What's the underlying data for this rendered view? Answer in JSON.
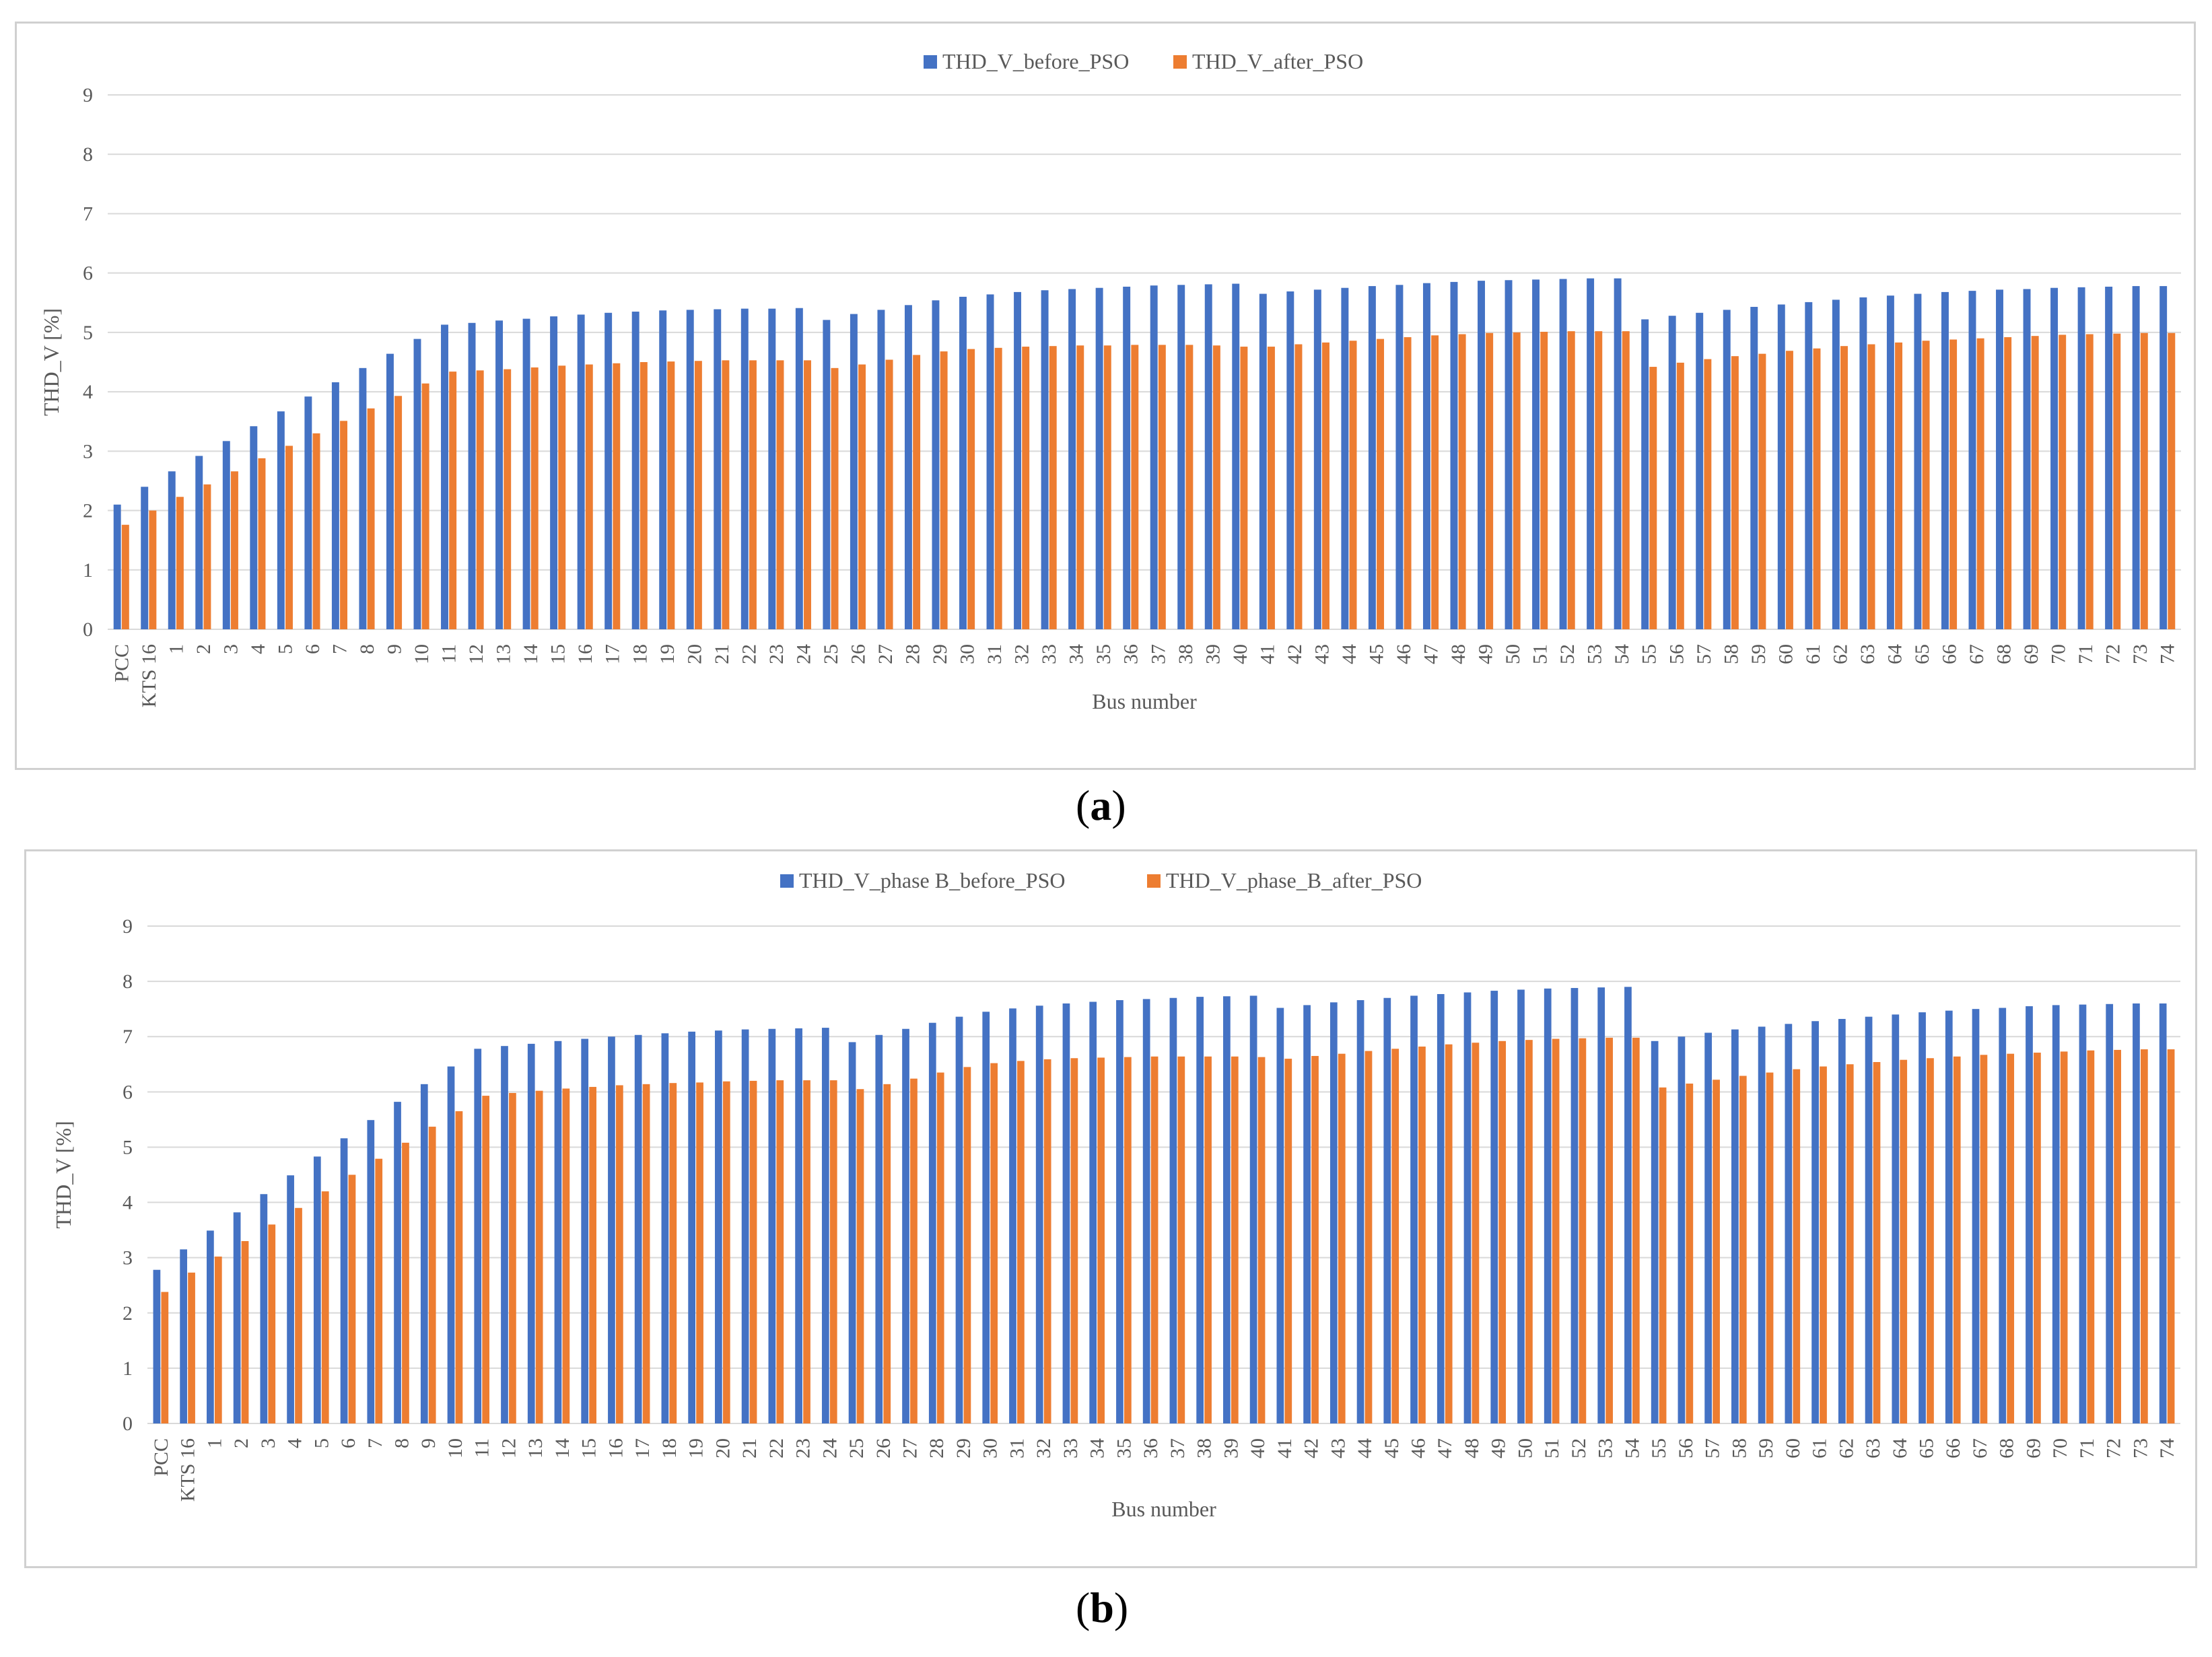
{
  "chart_data": [
    {
      "type": "bar",
      "panel": "a",
      "caption_open": "(",
      "caption_letter": "a",
      "caption_close": ")",
      "xlabel": "Bus number",
      "ylabel": "THD_V [%]",
      "ylim": [
        0,
        9
      ],
      "yticks": [
        "0",
        "1",
        "2",
        "3",
        "4",
        "5",
        "6",
        "7",
        "8",
        "9"
      ],
      "grid": true,
      "legend_position": "top-center",
      "categories": [
        "PCC",
        "KTS 16",
        "1",
        "2",
        "3",
        "4",
        "5",
        "6",
        "7",
        "8",
        "9",
        "10",
        "11",
        "12",
        "13",
        "14",
        "15",
        "16",
        "17",
        "18",
        "19",
        "20",
        "21",
        "22",
        "23",
        "24",
        "25",
        "26",
        "27",
        "28",
        "29",
        "30",
        "31",
        "32",
        "33",
        "34",
        "35",
        "36",
        "37",
        "38",
        "39",
        "40",
        "41",
        "42",
        "43",
        "44",
        "45",
        "46",
        "47",
        "48",
        "49",
        "50",
        "51",
        "52",
        "53",
        "54",
        "55",
        "56",
        "57",
        "58",
        "59",
        "60",
        "61",
        "62",
        "63",
        "64",
        "65",
        "66",
        "67",
        "68",
        "69",
        "70",
        "71",
        "72",
        "73",
        "74"
      ],
      "series": [
        {
          "name": "THD_V_before_PSO",
          "color": "#4472C4",
          "values": [
            2.1,
            2.4,
            2.66,
            2.92,
            3.17,
            3.42,
            3.67,
            3.92,
            4.16,
            4.4,
            4.64,
            4.89,
            5.13,
            5.16,
            5.2,
            5.23,
            5.27,
            5.3,
            5.33,
            5.35,
            5.37,
            5.38,
            5.39,
            5.4,
            5.4,
            5.41,
            5.21,
            5.31,
            5.38,
            5.46,
            5.54,
            5.6,
            5.64,
            5.68,
            5.71,
            5.73,
            5.75,
            5.77,
            5.79,
            5.8,
            5.81,
            5.82,
            5.65,
            5.69,
            5.72,
            5.75,
            5.78,
            5.8,
            5.83,
            5.85,
            5.87,
            5.88,
            5.89,
            5.9,
            5.91,
            5.91,
            5.22,
            5.28,
            5.33,
            5.38,
            5.43,
            5.47,
            5.51,
            5.55,
            5.59,
            5.62,
            5.65,
            5.68,
            5.7,
            5.72,
            5.73,
            5.75,
            5.76,
            5.77,
            5.78,
            5.78
          ]
        },
        {
          "name": "THD_V_after_PSO",
          "color": "#ED7D31",
          "values": [
            1.76,
            2.0,
            2.23,
            2.44,
            2.66,
            2.88,
            3.09,
            3.3,
            3.51,
            3.72,
            3.93,
            4.14,
            4.34,
            4.36,
            4.38,
            4.41,
            4.44,
            4.46,
            4.48,
            4.5,
            4.51,
            4.52,
            4.53,
            4.53,
            4.53,
            4.53,
            4.4,
            4.46,
            4.54,
            4.62,
            4.68,
            4.72,
            4.74,
            4.76,
            4.77,
            4.78,
            4.78,
            4.79,
            4.79,
            4.79,
            4.78,
            4.76,
            4.76,
            4.8,
            4.83,
            4.86,
            4.89,
            4.92,
            4.95,
            4.97,
            4.99,
            5.0,
            5.01,
            5.02,
            5.02,
            5.02,
            4.42,
            4.49,
            4.55,
            4.6,
            4.64,
            4.69,
            4.73,
            4.77,
            4.8,
            4.83,
            4.86,
            4.88,
            4.9,
            4.92,
            4.94,
            4.96,
            4.97,
            4.98,
            4.99,
            4.99
          ]
        }
      ]
    },
    {
      "type": "bar",
      "panel": "b",
      "caption_open": "(",
      "caption_letter": "b",
      "caption_close": ")",
      "xlabel": "Bus number",
      "ylabel": "THD_V [%]",
      "ylim": [
        0,
        9
      ],
      "yticks": [
        "0",
        "1",
        "2",
        "3",
        "4",
        "5",
        "6",
        "7",
        "8",
        "9"
      ],
      "grid": true,
      "legend_position": "top-center",
      "categories": [
        "PCC",
        "KTS 16",
        "1",
        "2",
        "3",
        "4",
        "5",
        "6",
        "7",
        "8",
        "9",
        "10",
        "11",
        "12",
        "13",
        "14",
        "15",
        "16",
        "17",
        "18",
        "19",
        "20",
        "21",
        "22",
        "23",
        "24",
        "25",
        "26",
        "27",
        "28",
        "29",
        "30",
        "31",
        "32",
        "33",
        "34",
        "35",
        "36",
        "37",
        "38",
        "39",
        "40",
        "41",
        "42",
        "43",
        "44",
        "45",
        "46",
        "47",
        "48",
        "49",
        "50",
        "51",
        "52",
        "53",
        "54",
        "55",
        "56",
        "57",
        "58",
        "59",
        "60",
        "61",
        "62",
        "63",
        "64",
        "65",
        "66",
        "67",
        "68",
        "69",
        "70",
        "71",
        "72",
        "73",
        "74"
      ],
      "series": [
        {
          "name": "THD_V_phase B_before_PSO",
          "color": "#4472C4",
          "values": [
            2.78,
            3.15,
            3.49,
            3.82,
            4.15,
            4.49,
            4.83,
            5.16,
            5.49,
            5.82,
            6.14,
            6.46,
            6.78,
            6.83,
            6.87,
            6.92,
            6.96,
            7.0,
            7.03,
            7.06,
            7.09,
            7.11,
            7.13,
            7.14,
            7.15,
            7.16,
            6.9,
            7.03,
            7.14,
            7.25,
            7.36,
            7.45,
            7.51,
            7.56,
            7.6,
            7.63,
            7.66,
            7.68,
            7.7,
            7.72,
            7.73,
            7.74,
            7.52,
            7.57,
            7.62,
            7.66,
            7.7,
            7.74,
            7.77,
            7.8,
            7.83,
            7.85,
            7.87,
            7.88,
            7.89,
            7.9,
            6.92,
            7.0,
            7.07,
            7.13,
            7.18,
            7.23,
            7.28,
            7.32,
            7.36,
            7.4,
            7.44,
            7.47,
            7.5,
            7.52,
            7.55,
            7.57,
            7.58,
            7.59,
            7.6,
            7.6
          ]
        },
        {
          "name": "THD_V_phase_B_after_PSO",
          "color": "#ED7D31",
          "values": [
            2.38,
            2.73,
            3.02,
            3.3,
            3.6,
            3.9,
            4.2,
            4.5,
            4.79,
            5.08,
            5.37,
            5.65,
            5.93,
            5.98,
            6.02,
            6.06,
            6.09,
            6.12,
            6.14,
            6.16,
            6.17,
            6.19,
            6.2,
            6.21,
            6.21,
            6.21,
            6.05,
            6.14,
            6.24,
            6.35,
            6.45,
            6.52,
            6.56,
            6.59,
            6.61,
            6.62,
            6.63,
            6.64,
            6.64,
            6.64,
            6.64,
            6.63,
            6.6,
            6.65,
            6.69,
            6.74,
            6.78,
            6.82,
            6.86,
            6.89,
            6.92,
            6.94,
            6.96,
            6.97,
            6.98,
            6.98,
            6.08,
            6.15,
            6.22,
            6.29,
            6.35,
            6.41,
            6.46,
            6.5,
            6.54,
            6.58,
            6.61,
            6.64,
            6.67,
            6.69,
            6.71,
            6.73,
            6.75,
            6.76,
            6.77,
            6.77
          ]
        }
      ]
    }
  ]
}
